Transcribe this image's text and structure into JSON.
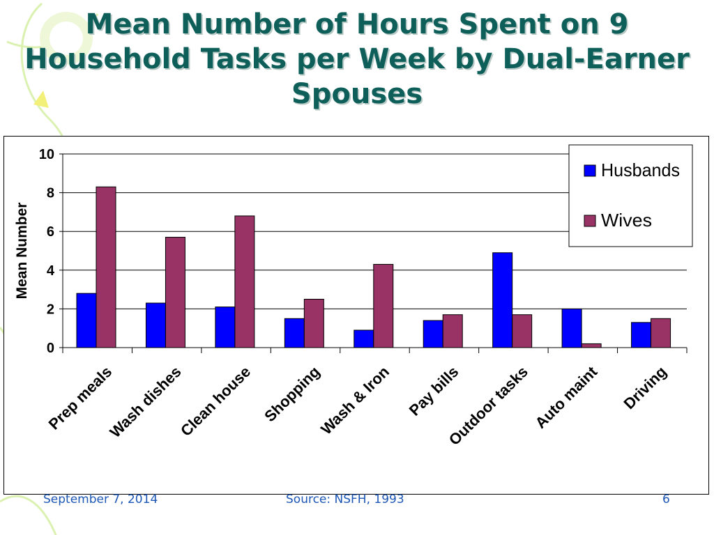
{
  "slide": {
    "title": "Mean Number of Hours Spent on 9 Household Tasks per Week by Dual-Earner Spouses",
    "footer_date": "September 7, 2014",
    "footer_source": "Source: NSFH, 1993",
    "page_number": "6"
  },
  "colors": {
    "title": "#0e5f5a",
    "husbands": "#0000ff",
    "wives": "#993366",
    "footer": "#1d57b5",
    "decor": "#d6f0a8"
  },
  "chart_data": {
    "type": "bar",
    "title": "",
    "xlabel": "",
    "ylabel": "Mean Number",
    "ylim": [
      0,
      10
    ],
    "yticks": [
      0,
      2,
      4,
      6,
      8,
      10
    ],
    "grid": true,
    "legend_position": "top-right",
    "categories": [
      "Prep meals",
      "Wash dishes",
      "Clean house",
      "Shopping",
      "Wash & Iron",
      "Pay bills",
      "Outdoor tasks",
      "Auto maint",
      "Driving"
    ],
    "series": [
      {
        "name": "Husbands",
        "color": "#0000ff",
        "values": [
          2.8,
          2.3,
          2.1,
          1.5,
          0.9,
          1.4,
          4.9,
          2.0,
          1.3
        ]
      },
      {
        "name": "Wives",
        "color": "#993366",
        "values": [
          8.3,
          5.7,
          6.8,
          2.5,
          4.3,
          1.7,
          1.7,
          0.2,
          1.5
        ]
      }
    ]
  }
}
